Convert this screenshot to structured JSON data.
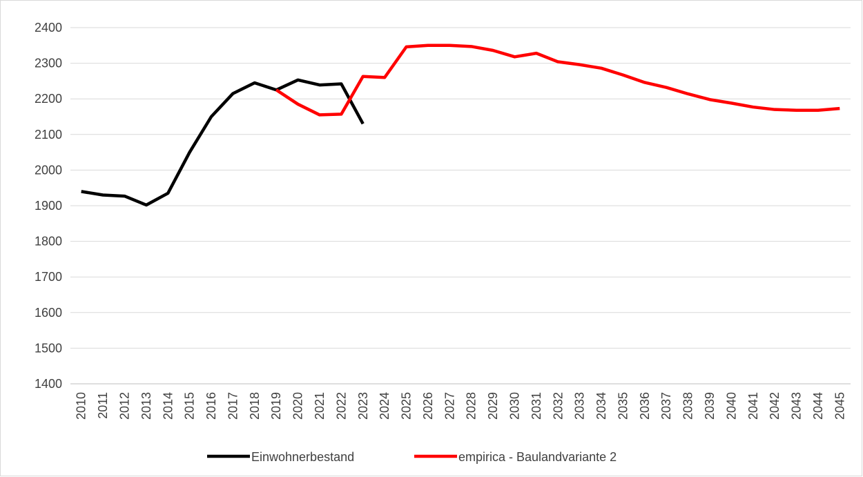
{
  "chart_data": {
    "type": "line",
    "categories": [
      "2010",
      "2011",
      "2012",
      "2013",
      "2014",
      "2015",
      "2016",
      "2017",
      "2018",
      "2019",
      "2020",
      "2021",
      "2022",
      "2023",
      "2024",
      "2025",
      "2026",
      "2027",
      "2028",
      "2029",
      "2030",
      "2031",
      "2032",
      "2033",
      "2034",
      "2035",
      "2036",
      "2037",
      "2038",
      "2039",
      "2040",
      "2041",
      "2042",
      "2043",
      "2044",
      "2045"
    ],
    "series": [
      {
        "name": "Einwohnerbestand",
        "color": "#000000",
        "values": [
          1940,
          1930,
          1927,
          1902,
          1935,
          2050,
          2150,
          2215,
          2245,
          2225,
          2253,
          2239,
          2242,
          2130,
          null,
          null,
          null,
          null,
          null,
          null,
          null,
          null,
          null,
          null,
          null,
          null,
          null,
          null,
          null,
          null,
          null,
          null,
          null,
          null,
          null,
          null
        ]
      },
      {
        "name": "empirica - Baulandvariante 2",
        "color": "#ff0000",
        "values": [
          null,
          null,
          null,
          null,
          null,
          null,
          null,
          null,
          null,
          2225,
          2185,
          2155,
          2157,
          2263,
          2260,
          2346,
          2350,
          2350,
          2347,
          2336,
          2318,
          2328,
          2304,
          2296,
          2286,
          2267,
          2246,
          2232,
          2214,
          2198,
          2188,
          2177,
          2170,
          2168,
          2168,
          2173
        ]
      }
    ],
    "ylim": [
      1400,
      2400
    ],
    "yticks": [
      1400,
      1500,
      1600,
      1700,
      1800,
      1900,
      2000,
      2100,
      2200,
      2300,
      2400
    ],
    "grid": true,
    "legend": "bottom"
  }
}
